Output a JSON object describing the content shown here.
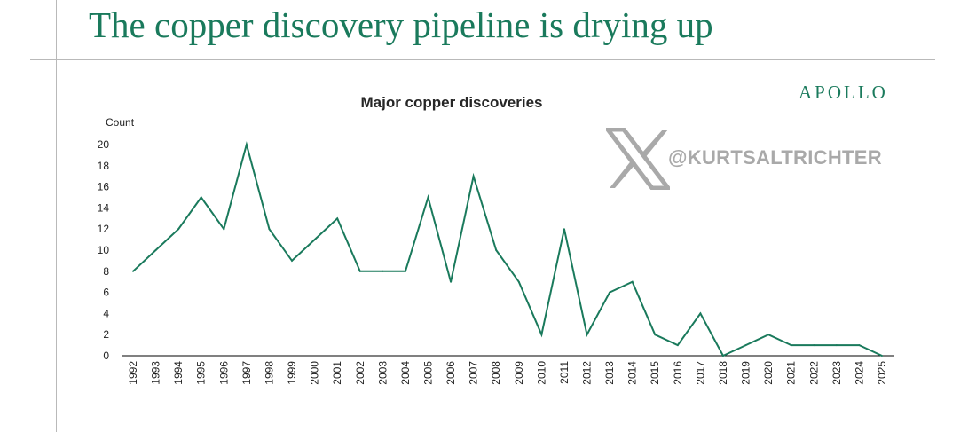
{
  "headline": "The copper discovery pipeline is drying up",
  "brand": "APOLLO",
  "watermark": {
    "icon": "x-logo-icon",
    "handle": "@KURTSALTRICHTER"
  },
  "colors": {
    "accent": "#1a7a5c",
    "line": "#1a7a5c",
    "axis": "#000000",
    "watermark": "#a9a9a9"
  },
  "chart_data": {
    "type": "line",
    "title": "Major copper discoveries",
    "ylabel": "Count",
    "xlabel": "",
    "ylim": [
      0,
      20
    ],
    "yticks": [
      0,
      2,
      4,
      6,
      8,
      10,
      12,
      14,
      16,
      18,
      20
    ],
    "grid": false,
    "legend": "none",
    "categories": [
      "1992",
      "1993",
      "1994",
      "1995",
      "1996",
      "1997",
      "1998",
      "1999",
      "2000",
      "2001",
      "2002",
      "2003",
      "2004",
      "2005",
      "2006",
      "2007",
      "2008",
      "2009",
      "2010",
      "2011",
      "2012",
      "2013",
      "2014",
      "2015",
      "2016",
      "2017",
      "2018",
      "2019",
      "2020",
      "2021",
      "2022",
      "2023",
      "2024",
      "2025"
    ],
    "series": [
      {
        "values": [
          8,
          10,
          12,
          15,
          12,
          20,
          12,
          9,
          11,
          13,
          8,
          8,
          8,
          15,
          7,
          17,
          10,
          7,
          2,
          12,
          2,
          6,
          7,
          2,
          1,
          4,
          0,
          1,
          2,
          1,
          1,
          1,
          1,
          0
        ]
      }
    ]
  }
}
